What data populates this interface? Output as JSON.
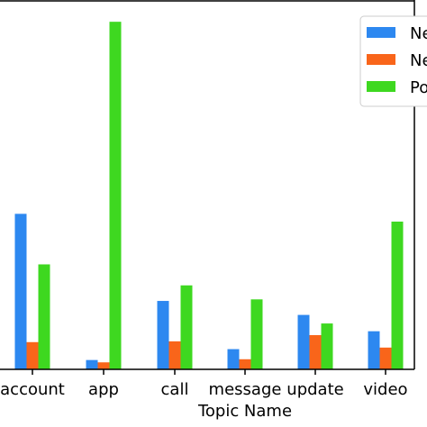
{
  "chart_data": {
    "type": "bar",
    "xlabel": "Topic Name",
    "ylabel": "",
    "title": "",
    "categories": [
      "account",
      "app",
      "call",
      "message",
      "update",
      "video"
    ],
    "series": [
      {
        "name": "Ne",
        "color": "#2d88f0",
        "values": [
          200,
          12,
          88,
          26,
          70,
          49
        ]
      },
      {
        "name": "Ne",
        "color": "#f9651a",
        "values": [
          35,
          9,
          36,
          13,
          44,
          28
        ]
      },
      {
        "name": "Po",
        "color": "#3ed820",
        "values": [
          135,
          447,
          108,
          90,
          59,
          190
        ]
      }
    ],
    "ylim": [
      0,
      475
    ],
    "grid": false,
    "legend": "top-right"
  }
}
